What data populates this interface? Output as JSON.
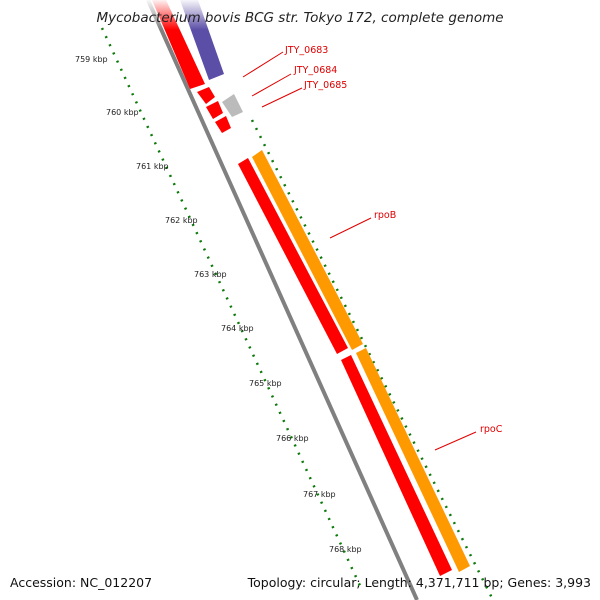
{
  "title": "Mycobacterium bovis BCG str. Tokyo 172, complete genome",
  "footer": {
    "accession": "Accession: NC_012207",
    "summary": "Topology: circular; Length: 4,371,711 bp; Genes: 3,993"
  },
  "kbp_labels": [
    "759 kbp",
    "760 kbp",
    "761 kbp",
    "762 kbp",
    "763 kbp",
    "764 kbp",
    "765 kbp",
    "766 kbp",
    "767 kbp",
    "768 kbp"
  ],
  "gene_labels": {
    "jty0683": "JTY_0683",
    "jty0684": "JTY_0684",
    "jty0685": "JTY_0685",
    "rpoB": "rpoB",
    "rpoC": "rpoC"
  },
  "colors": {
    "backbone": "#808080",
    "cds_red": "#ff0000",
    "orange": "#ff9900",
    "purple": "#5b4ea6",
    "grey_feature": "#bbbbbb",
    "label_red": "#e00000",
    "tick_green": "#0b7a0b"
  }
}
